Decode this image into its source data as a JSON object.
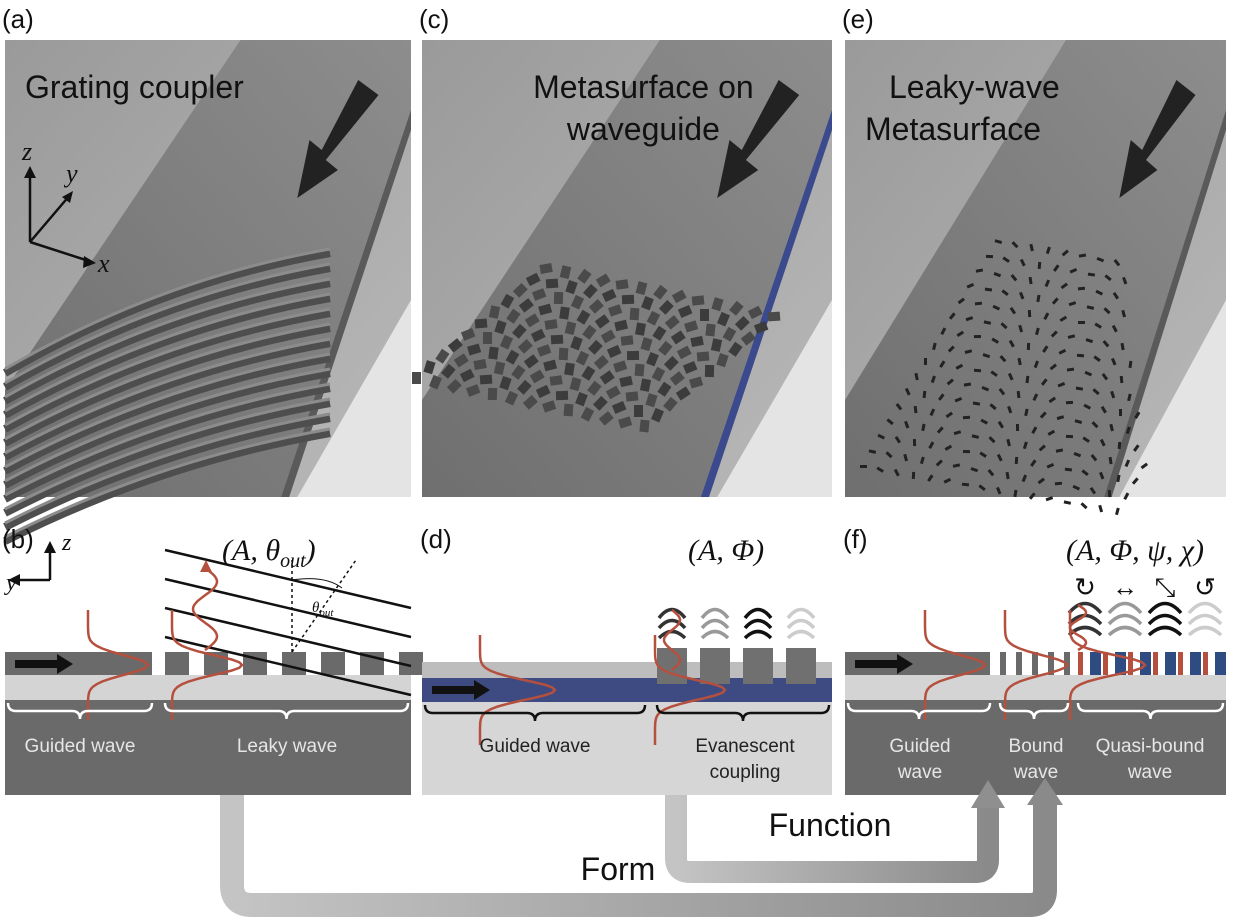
{
  "panels": {
    "a": {
      "label": "(a)",
      "title": [
        "Grating coupler"
      ],
      "axes": {
        "z": "z",
        "y": "y",
        "x": "x"
      }
    },
    "c": {
      "label": "(c)",
      "title": [
        "Metasurface on",
        "waveguide"
      ]
    },
    "e": {
      "label": "(e)",
      "title": [
        "Leaky-wave",
        "Metasurface"
      ]
    },
    "b": {
      "label": "(b)",
      "formula": {
        "open": "(A, θ",
        "sub": "out",
        "close": ")"
      },
      "angle": {
        "symbol": "θ",
        "sub": "out"
      },
      "axes": {
        "z": "z",
        "y": "y"
      },
      "regions": [
        [
          "Guided wave"
        ],
        [
          "Leaky wave"
        ]
      ]
    },
    "d": {
      "label": "(d)",
      "formula": "(A, Φ)",
      "regions": [
        [
          "Guided wave"
        ],
        [
          "Evanescent",
          "coupling"
        ]
      ]
    },
    "f": {
      "label": "(f)",
      "formula": "(A, Φ, ψ, χ)",
      "polarizations": [
        "↻",
        "↔",
        "⤡",
        "↺"
      ],
      "regions": [
        [
          "Guided",
          "wave"
        ],
        [
          "Bound",
          "wave"
        ],
        [
          "Quasi-bound",
          "wave"
        ]
      ]
    }
  },
  "arrows": {
    "function": "Function",
    "form": "Form"
  }
}
